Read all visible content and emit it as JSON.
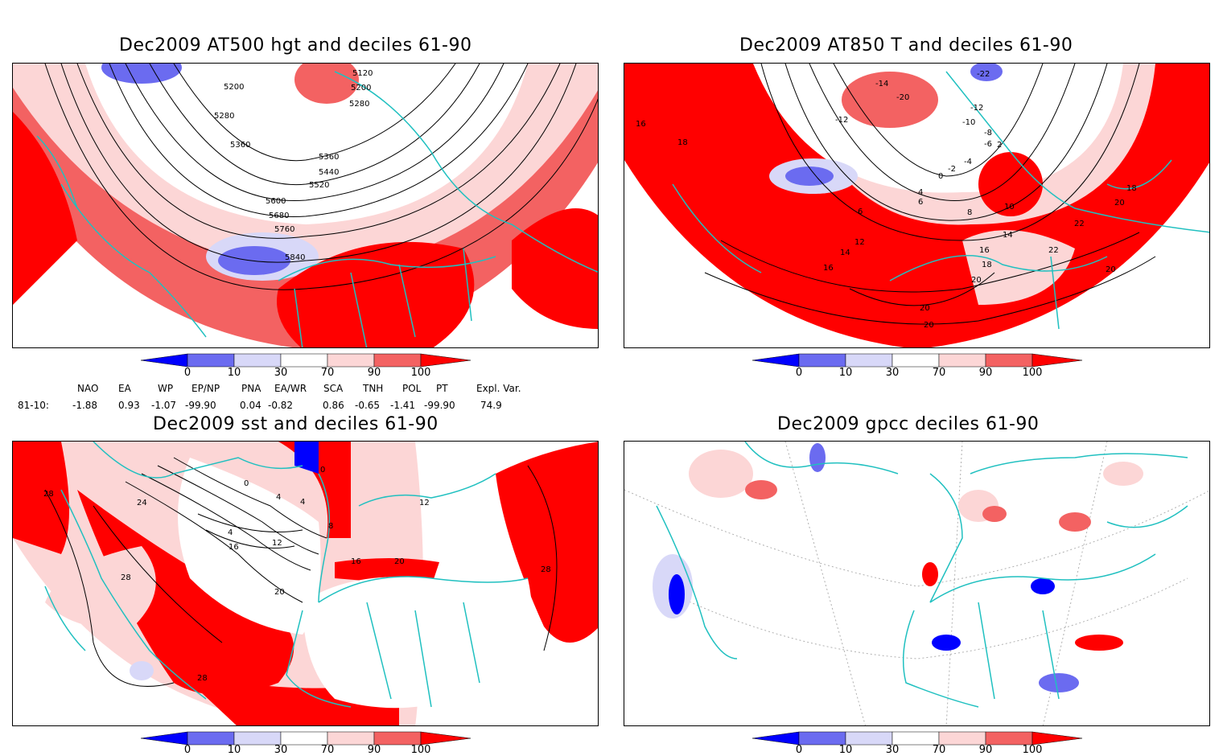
{
  "panels": [
    {
      "title": "Dec2009 AT500 hgt and deciles 61-90",
      "contour_labels": [
        "5200",
        "5120",
        "5200",
        "5280",
        "5280",
        "5360",
        "5360",
        "5440",
        "5520",
        "5600",
        "5680",
        "5760",
        "5840"
      ]
    },
    {
      "title": "Dec2009 AT850 T and deciles 61-90",
      "contour_labels": [
        "-14",
        "-12",
        "-20",
        "-22",
        "-12",
        "-10",
        "-8",
        "-6",
        "-4",
        "-2",
        "0",
        "2",
        "4",
        "6",
        "6",
        "8",
        "10",
        "12",
        "14",
        "14",
        "16",
        "16",
        "18",
        "18",
        "18",
        "20",
        "20",
        "20",
        "22",
        "22",
        "20",
        "16",
        "20",
        "18"
      ]
    },
    {
      "title": "Dec2009 sst and deciles 61-90",
      "contour_labels": [
        "28",
        "24",
        "0",
        "4",
        "8",
        "4",
        "4",
        "16",
        "12",
        "20",
        "28",
        "28",
        "12",
        "16",
        "20",
        "28",
        "0"
      ]
    },
    {
      "title": "Dec2009 gpcc deciles 61-90",
      "contour_labels": []
    }
  ],
  "colorbar": {
    "labels": [
      "0",
      "10",
      "30",
      "70",
      "90",
      "100"
    ],
    "colors": {
      "dark_blue": "#0000ff",
      "mid_blue": "#6b6bf0",
      "light_blue": "#d8d8f8",
      "white": "#ffffff",
      "light_red": "#fcd6d6",
      "mid_red": "#f36262",
      "dark_red": "#ff0000"
    }
  },
  "indices": {
    "headers": [
      "NAO",
      "EA",
      "WP",
      "EP/NP",
      "PNA",
      "EA/WR",
      "SCA",
      "TNH",
      "POL",
      "PT",
      "Expl. Var."
    ],
    "row_label": "81-10:",
    "values": [
      "-1.88",
      "0.93",
      "-1.07",
      "-99.90",
      "0.04",
      "-0.82",
      "0.86",
      "-0.65",
      "-1.41",
      "-99.90",
      "74.9"
    ]
  },
  "colors": {
    "coastline": "#20c0c0",
    "contour": "#000000"
  }
}
